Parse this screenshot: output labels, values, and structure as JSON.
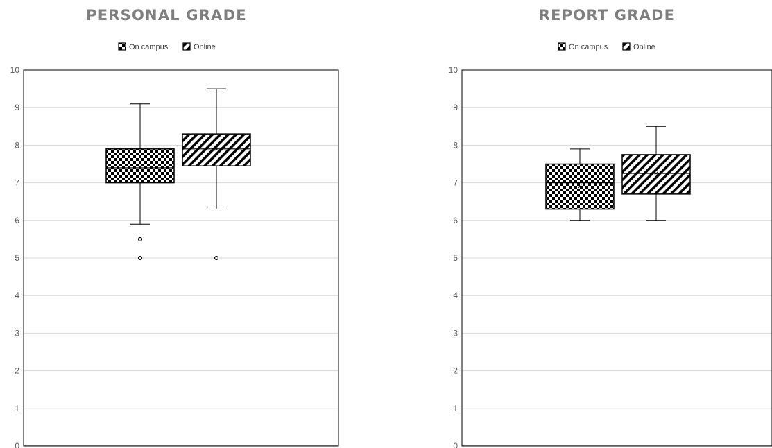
{
  "chart_data": [
    {
      "type": "box",
      "title": "PERSONAL GRADE",
      "legend": [
        "On campus",
        "Online"
      ],
      "legend_position": "top",
      "ylim": [
        0,
        10
      ],
      "yticks": [
        0,
        1,
        2,
        3,
        4,
        5,
        6,
        7,
        8,
        9,
        10
      ],
      "grid": true,
      "series": [
        {
          "name": "On campus",
          "pattern": "checker",
          "min": 5.9,
          "q1": 7.0,
          "median": 7.4,
          "mean": 7.4,
          "q3": 7.9,
          "max": 9.1,
          "outliers": [
            5.5,
            5.0
          ]
        },
        {
          "name": "Online",
          "pattern": "diagonal",
          "min": 6.3,
          "q1": 7.45,
          "median": 7.9,
          "mean": 7.9,
          "q3": 8.3,
          "max": 9.5,
          "outliers": [
            5.0
          ]
        }
      ]
    },
    {
      "type": "box",
      "title": "REPORT GRADE",
      "legend": [
        "On campus",
        "Online"
      ],
      "legend_position": "top",
      "ylim": [
        0,
        10
      ],
      "yticks": [
        0,
        1,
        2,
        3,
        4,
        5,
        6,
        7,
        8,
        9,
        10
      ],
      "grid": true,
      "series": [
        {
          "name": "On campus",
          "pattern": "checker",
          "min": 6.0,
          "q1": 6.3,
          "median": 7.0,
          "mean": 6.9,
          "q3": 7.5,
          "max": 7.9,
          "outliers": []
        },
        {
          "name": "Online",
          "pattern": "diagonal",
          "min": 6.0,
          "q1": 6.7,
          "median": 7.25,
          "mean": 7.25,
          "q3": 7.75,
          "max": 8.5,
          "outliers": []
        }
      ]
    }
  ]
}
